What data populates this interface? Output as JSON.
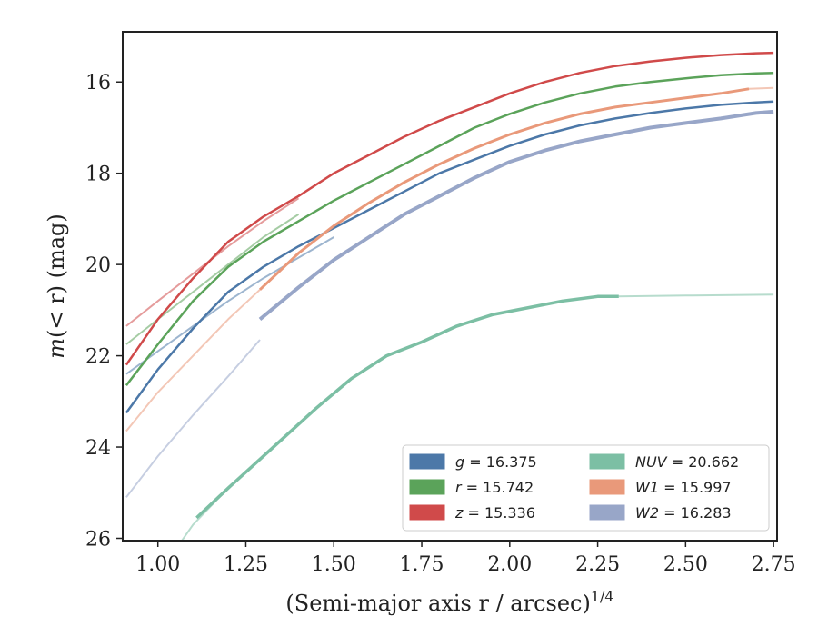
{
  "chart_data": {
    "type": "line",
    "xlabel": "(Semi-major axis r / arcsec)",
    "xlabel_exponent": "1/4",
    "ylabel_prefix": "m",
    "ylabel_middle": "(< r)",
    "ylabel_suffix": " (mag)",
    "xlim": [
      0.9,
      2.76
    ],
    "ylim": [
      26.05,
      14.9
    ],
    "y_inverted": true,
    "grid": false,
    "legend_placement": "lower-right",
    "xticks": [
      1.0,
      1.25,
      1.5,
      1.75,
      2.0,
      2.25,
      2.5,
      2.75
    ],
    "xtick_labels": [
      "1.00",
      "1.25",
      "1.50",
      "1.75",
      "2.00",
      "2.25",
      "2.50",
      "2.75"
    ],
    "yticks": [
      16,
      18,
      20,
      22,
      24,
      26
    ],
    "ytick_labels": [
      "16",
      "18",
      "20",
      "22",
      "24",
      "26"
    ],
    "series": [
      {
        "name": "g = 16.375",
        "label_var": "g",
        "label_val": "= 16.375",
        "color": "#4c78a8",
        "width": 2.5,
        "curves": [
          {
            "faint": false,
            "points": [
              [
                0.91,
                23.25
              ],
              [
                1.0,
                22.3
              ],
              [
                1.1,
                21.4
              ],
              [
                1.2,
                20.6
              ],
              [
                1.3,
                20.05
              ],
              [
                1.4,
                19.6
              ],
              [
                1.5,
                19.2
              ],
              [
                1.6,
                18.8
              ],
              [
                1.7,
                18.4
              ],
              [
                1.8,
                18.0
              ],
              [
                1.9,
                17.7
              ],
              [
                2.0,
                17.4
              ],
              [
                2.1,
                17.15
              ],
              [
                2.2,
                16.95
              ],
              [
                2.3,
                16.8
              ],
              [
                2.4,
                16.68
              ],
              [
                2.5,
                16.58
              ],
              [
                2.6,
                16.5
              ],
              [
                2.7,
                16.45
              ],
              [
                2.75,
                16.43
              ]
            ]
          },
          {
            "faint": true,
            "points": [
              [
                0.91,
                22.4
              ],
              [
                1.0,
                21.9
              ],
              [
                1.1,
                21.35
              ],
              [
                1.2,
                20.8
              ],
              [
                1.3,
                20.3
              ],
              [
                1.4,
                19.85
              ],
              [
                1.5,
                19.4
              ]
            ]
          }
        ]
      },
      {
        "name": "r = 15.742",
        "label_var": "r",
        "label_val": "= 15.742",
        "color": "#5ba35a",
        "width": 2.5,
        "curves": [
          {
            "faint": false,
            "points": [
              [
                0.91,
                22.65
              ],
              [
                1.0,
                21.75
              ],
              [
                1.1,
                20.8
              ],
              [
                1.2,
                20.05
              ],
              [
                1.3,
                19.5
              ],
              [
                1.4,
                19.05
              ],
              [
                1.5,
                18.6
              ],
              [
                1.6,
                18.2
              ],
              [
                1.7,
                17.8
              ],
              [
                1.8,
                17.4
              ],
              [
                1.9,
                17.0
              ],
              [
                2.0,
                16.7
              ],
              [
                2.1,
                16.45
              ],
              [
                2.2,
                16.25
              ],
              [
                2.3,
                16.1
              ],
              [
                2.4,
                16.0
              ],
              [
                2.5,
                15.92
              ],
              [
                2.6,
                15.85
              ],
              [
                2.7,
                15.81
              ],
              [
                2.75,
                15.8
              ]
            ]
          },
          {
            "faint": true,
            "points": [
              [
                0.91,
                21.75
              ],
              [
                1.0,
                21.2
              ],
              [
                1.1,
                20.6
              ],
              [
                1.2,
                20.0
              ],
              [
                1.3,
                19.4
              ],
              [
                1.4,
                18.9
              ]
            ]
          }
        ]
      },
      {
        "name": "z = 15.336",
        "label_var": "z",
        "label_val": "= 15.336",
        "color": "#d04a4a",
        "width": 2.5,
        "curves": [
          {
            "faint": false,
            "points": [
              [
                0.91,
                22.2
              ],
              [
                1.0,
                21.2
              ],
              [
                1.1,
                20.3
              ],
              [
                1.2,
                19.5
              ],
              [
                1.3,
                18.95
              ],
              [
                1.4,
                18.5
              ],
              [
                1.5,
                18.0
              ],
              [
                1.6,
                17.6
              ],
              [
                1.7,
                17.2
              ],
              [
                1.8,
                16.85
              ],
              [
                1.9,
                16.55
              ],
              [
                2.0,
                16.25
              ],
              [
                2.1,
                16.0
              ],
              [
                2.2,
                15.8
              ],
              [
                2.3,
                15.65
              ],
              [
                2.4,
                15.55
              ],
              [
                2.5,
                15.47
              ],
              [
                2.6,
                15.41
              ],
              [
                2.7,
                15.37
              ],
              [
                2.75,
                15.36
              ]
            ]
          },
          {
            "faint": true,
            "points": [
              [
                0.91,
                21.35
              ],
              [
                1.0,
                20.8
              ],
              [
                1.1,
                20.2
              ],
              [
                1.2,
                19.6
              ],
              [
                1.3,
                19.05
              ],
              [
                1.4,
                18.55
              ]
            ]
          }
        ]
      },
      {
        "name": "NUV = 20.662",
        "label_var": "NUV",
        "label_val": "= 20.662",
        "color": "#7cbfa4",
        "width": 3.5,
        "curves": [
          {
            "faint": true,
            "points": [
              [
                1.0,
                26.8
              ],
              [
                1.1,
                25.7
              ],
              [
                1.2,
                24.9
              ],
              [
                1.3,
                24.2
              ]
            ]
          },
          {
            "faint": false,
            "points": [
              [
                1.11,
                25.55
              ],
              [
                1.2,
                24.9
              ],
              [
                1.3,
                24.2
              ],
              [
                1.45,
                23.15
              ],
              [
                1.55,
                22.5
              ],
              [
                1.65,
                22.0
              ],
              [
                1.75,
                21.7
              ],
              [
                1.85,
                21.35
              ],
              [
                1.95,
                21.1
              ],
              [
                2.05,
                20.95
              ],
              [
                2.15,
                20.8
              ],
              [
                2.25,
                20.7
              ],
              [
                2.31,
                20.7
              ]
            ]
          },
          {
            "faint": true,
            "points": [
              [
                2.31,
                20.7
              ],
              [
                2.5,
                20.68
              ],
              [
                2.75,
                20.66
              ]
            ]
          }
        ]
      },
      {
        "name": "W1 = 15.997",
        "label_var": "W1",
        "label_val": "= 15.997",
        "color": "#e9997a",
        "width": 3,
        "curves": [
          {
            "faint": true,
            "points": [
              [
                0.91,
                23.65
              ],
              [
                1.0,
                22.8
              ],
              [
                1.1,
                22.0
              ],
              [
                1.2,
                21.2
              ],
              [
                1.29,
                20.55
              ]
            ]
          },
          {
            "faint": false,
            "points": [
              [
                1.29,
                20.55
              ],
              [
                1.4,
                19.75
              ],
              [
                1.5,
                19.15
              ],
              [
                1.6,
                18.65
              ],
              [
                1.7,
                18.2
              ],
              [
                1.8,
                17.8
              ],
              [
                1.9,
                17.45
              ],
              [
                2.0,
                17.15
              ],
              [
                2.1,
                16.9
              ],
              [
                2.2,
                16.7
              ],
              [
                2.3,
                16.55
              ],
              [
                2.4,
                16.45
              ],
              [
                2.5,
                16.35
              ],
              [
                2.6,
                16.25
              ],
              [
                2.68,
                16.15
              ]
            ]
          },
          {
            "faint": true,
            "points": [
              [
                2.68,
                16.15
              ],
              [
                2.75,
                16.13
              ]
            ]
          }
        ]
      },
      {
        "name": "W2 = 16.283",
        "label_var": "W2",
        "label_val": "= 16.283",
        "color": "#98a6c8",
        "width": 4,
        "curves": [
          {
            "faint": true,
            "points": [
              [
                0.91,
                25.1
              ],
              [
                1.0,
                24.2
              ],
              [
                1.1,
                23.3
              ],
              [
                1.2,
                22.45
              ],
              [
                1.29,
                21.65
              ]
            ]
          },
          {
            "faint": false,
            "points": [
              [
                1.29,
                21.2
              ],
              [
                1.4,
                20.5
              ],
              [
                1.5,
                19.9
              ],
              [
                1.6,
                19.4
              ],
              [
                1.7,
                18.9
              ],
              [
                1.8,
                18.5
              ],
              [
                1.9,
                18.1
              ],
              [
                2.0,
                17.75
              ],
              [
                2.1,
                17.5
              ],
              [
                2.2,
                17.3
              ],
              [
                2.3,
                17.15
              ],
              [
                2.4,
                17.0
              ],
              [
                2.5,
                16.9
              ],
              [
                2.6,
                16.8
              ],
              [
                2.7,
                16.68
              ],
              [
                2.75,
                16.65
              ]
            ]
          }
        ]
      }
    ]
  }
}
